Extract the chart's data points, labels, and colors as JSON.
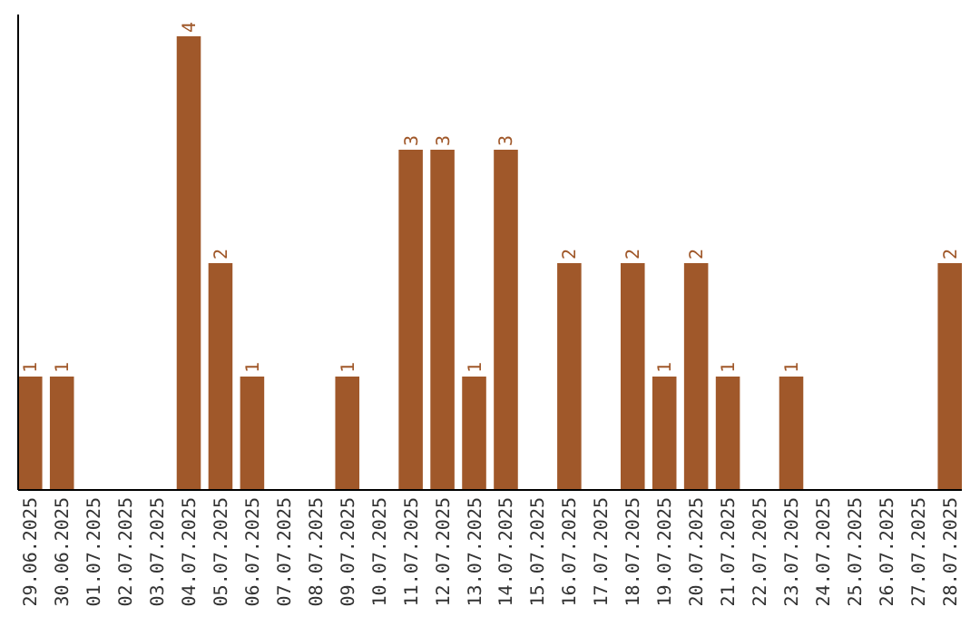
{
  "chart_data": {
    "type": "bar",
    "categories": [
      "29.06.2025",
      "30.06.2025",
      "01.07.2025",
      "02.07.2025",
      "03.07.2025",
      "04.07.2025",
      "05.07.2025",
      "06.07.2025",
      "07.07.2025",
      "08.07.2025",
      "09.07.2025",
      "10.07.2025",
      "11.07.2025",
      "12.07.2025",
      "13.07.2025",
      "14.07.2025",
      "15.07.2025",
      "16.07.2025",
      "17.07.2025",
      "18.07.2025",
      "19.07.2025",
      "20.07.2025",
      "21.07.2025",
      "22.07.2025",
      "23.07.2025",
      "24.07.2025",
      "25.07.2025",
      "26.07.2025",
      "27.07.2025",
      "28.07.2025"
    ],
    "values": [
      1,
      1,
      0,
      0,
      0,
      4,
      2,
      1,
      0,
      0,
      1,
      0,
      3,
      3,
      1,
      3,
      0,
      2,
      0,
      2,
      1,
      2,
      1,
      0,
      1,
      0,
      0,
      0,
      0,
      2
    ],
    "value_labels": [
      "1",
      "1",
      null,
      null,
      null,
      "4",
      "2",
      "1",
      null,
      null,
      "1",
      null,
      "3",
      "3",
      "1",
      "3",
      null,
      "2",
      null,
      "2",
      "1",
      "2",
      "1",
      null,
      "1",
      null,
      null,
      null,
      null,
      "2"
    ],
    "color": "#a0582a",
    "ylim": [
      0,
      4
    ],
    "tick_labels": "x"
  }
}
